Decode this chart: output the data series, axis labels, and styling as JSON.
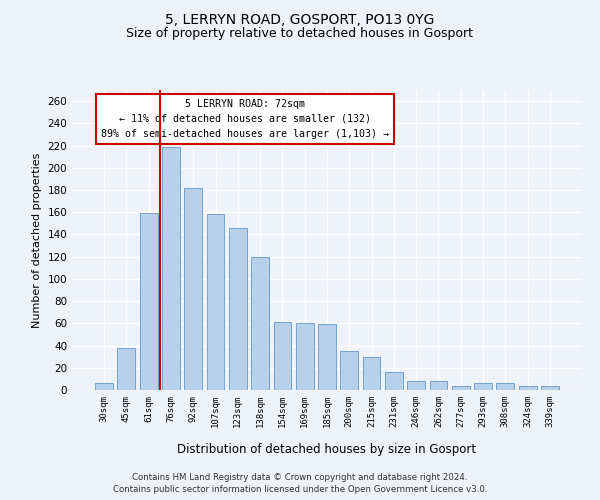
{
  "title1": "5, LERRYN ROAD, GOSPORT, PO13 0YG",
  "title2": "Size of property relative to detached houses in Gosport",
  "xlabel": "Distribution of detached houses by size in Gosport",
  "ylabel": "Number of detached properties",
  "categories": [
    "30sqm",
    "45sqm",
    "61sqm",
    "76sqm",
    "92sqm",
    "107sqm",
    "123sqm",
    "138sqm",
    "154sqm",
    "169sqm",
    "185sqm",
    "200sqm",
    "215sqm",
    "231sqm",
    "246sqm",
    "262sqm",
    "277sqm",
    "293sqm",
    "308sqm",
    "324sqm",
    "339sqm"
  ],
  "values": [
    6,
    38,
    159,
    219,
    182,
    158,
    146,
    120,
    61,
    60,
    59,
    35,
    30,
    16,
    8,
    8,
    4,
    6,
    6,
    4,
    4
  ],
  "bar_color": "#b8d0ea",
  "bar_edge_color": "#6699cc",
  "vline_color": "#cc0000",
  "vline_x_index": 2.5,
  "annotation_line1": "5 LERRYN ROAD: 72sqm",
  "annotation_line2": "← 11% of detached houses are smaller (132)",
  "annotation_line3": "89% of semi-detached houses are larger (1,103) →",
  "annotation_box_color": "#ffffff",
  "annotation_box_edge": "#cc0000",
  "ylim": [
    0,
    270
  ],
  "yticks": [
    0,
    20,
    40,
    60,
    80,
    100,
    120,
    140,
    160,
    180,
    200,
    220,
    240,
    260
  ],
  "footer1": "Contains HM Land Registry data © Crown copyright and database right 2024.",
  "footer2": "Contains public sector information licensed under the Open Government Licence v3.0.",
  "bg_color": "#eef2f9",
  "grid_color": "#ffffff",
  "title1_fontsize": 10,
  "title2_fontsize": 9,
  "bar_width": 0.8
}
